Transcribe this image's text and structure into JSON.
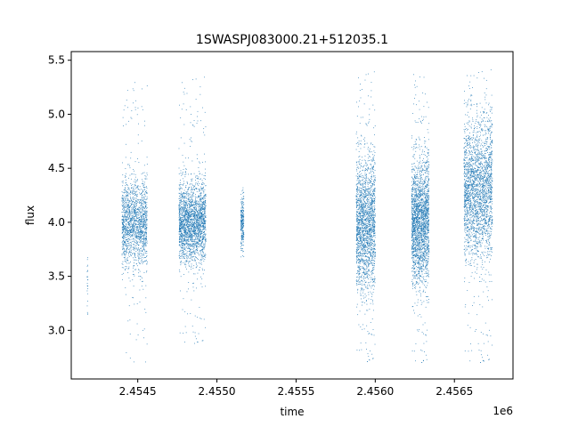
{
  "chart_data": {
    "type": "scatter",
    "title": "1SWASPJ083000.21+512035.1",
    "xlabel": "time",
    "ylabel": "flux",
    "x_offset_label": "1e6",
    "xlim": [
      2454080,
      2456870
    ],
    "ylim": [
      2.55,
      5.58
    ],
    "x_ticks": [
      2454500,
      2455000,
      2455500,
      2456000,
      2456500
    ],
    "x_tick_labels": [
      "2.4545",
      "2.4550",
      "2.4555",
      "2.4560",
      "2.4565"
    ],
    "y_ticks": [
      3.0,
      3.5,
      4.0,
      4.5,
      5.0,
      5.5
    ],
    "y_tick_labels": [
      "3.0",
      "3.5",
      "4.0",
      "4.5",
      "5.0",
      "5.5"
    ],
    "grid": false,
    "marker_color": "#1f77b4",
    "seasons": [
      {
        "x_start": 2454180,
        "x_end": 2454185,
        "y_center": 3.45,
        "y_spread": 0.16,
        "y_min": 3.15,
        "y_max": 3.78,
        "density": 25
      },
      {
        "x_start": 2454400,
        "x_end": 2454560,
        "y_center": 3.98,
        "y_spread": 0.2,
        "y_min": 2.7,
        "y_max": 5.3,
        "density": 1600
      },
      {
        "x_start": 2454760,
        "x_end": 2454930,
        "y_center": 4.0,
        "y_spread": 0.18,
        "y_min": 2.85,
        "y_max": 5.35,
        "density": 2200
      },
      {
        "x_start": 2455150,
        "x_end": 2455170,
        "y_center": 4.0,
        "y_spread": 0.12,
        "y_min": 3.68,
        "y_max": 4.32,
        "density": 240
      },
      {
        "x_start": 2455880,
        "x_end": 2456000,
        "y_center": 3.98,
        "y_spread": 0.3,
        "y_min": 2.68,
        "y_max": 5.4,
        "density": 2000
      },
      {
        "x_start": 2456230,
        "x_end": 2456340,
        "y_center": 4.0,
        "y_spread": 0.28,
        "y_min": 2.67,
        "y_max": 5.43,
        "density": 2200
      },
      {
        "x_start": 2456560,
        "x_end": 2456740,
        "y_center": 4.3,
        "y_spread": 0.32,
        "y_min": 2.67,
        "y_max": 5.42,
        "density": 2400
      }
    ]
  }
}
